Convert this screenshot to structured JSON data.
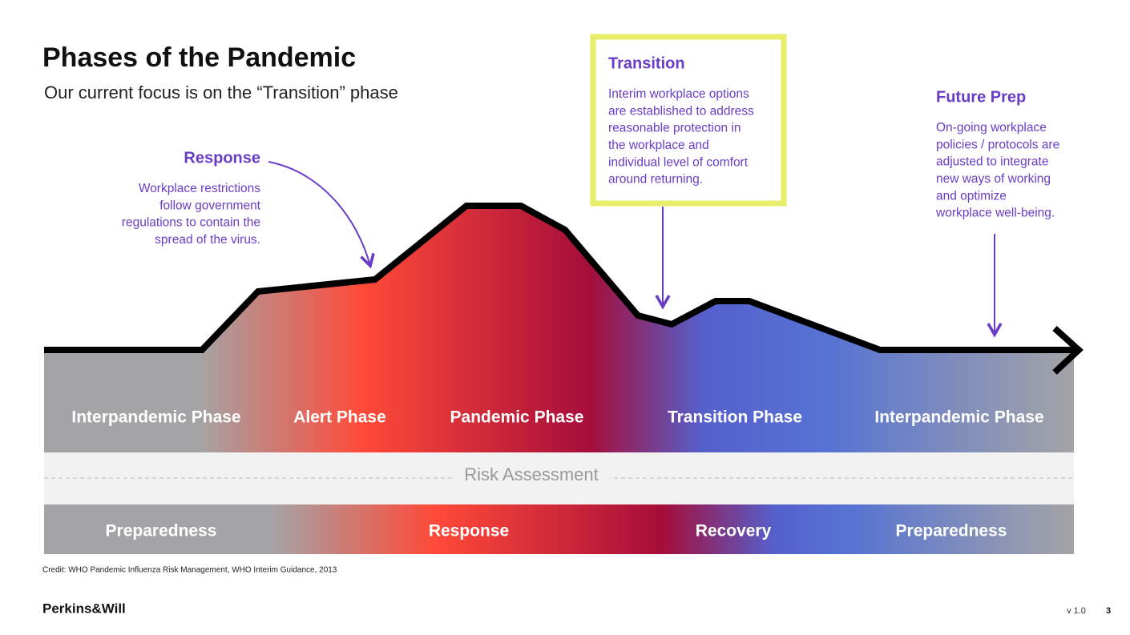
{
  "header": {
    "title": "Phases of the Pandemic",
    "subtitle": "Our current focus is on the “Transition” phase"
  },
  "annotations": [
    {
      "heading": "Response",
      "lines": [
        "Workplace restrictions",
        "follow government",
        "regulations to contain the",
        "spread of the virus."
      ]
    },
    {
      "heading": "Transition",
      "lines": [
        "Interim workplace options",
        "are established to address",
        "reasonable protection in",
        "the workplace and",
        "individual level of comfort",
        "around returning."
      ]
    },
    {
      "heading": "Future Prep",
      "lines": [
        "On-going workplace",
        "policies / protocols are",
        "adjusted to integrate",
        "new ways of working",
        "and optimize",
        "workplace well-being."
      ]
    }
  ],
  "phases": [
    "Interpandemic Phase",
    "Alert Phase",
    "Pandemic Phase",
    "Transition Phase",
    "Interpandemic Phase"
  ],
  "risk_label": "Risk Assessment",
  "stages": [
    "Preparedness",
    "Response",
    "Recovery",
    "Preparedness"
  ],
  "footer": {
    "credit": "Credit: WHO Pandemic Influenza Risk Management, WHO Interim Guidance, 2013",
    "logo": "Perkins&Will",
    "version": "v 1.0",
    "page": "3"
  }
}
